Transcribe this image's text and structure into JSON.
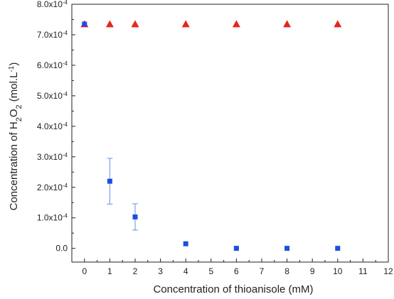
{
  "chart_data": {
    "type": "scatter",
    "xlabel": "Concentration of thioanisole (mM)",
    "ylabel_parts": {
      "prefix": "Concentration of H",
      "sub1": "2",
      "mid": "O",
      "sub2": "2",
      "unit": " (mol.L",
      "unit_sup": "-1",
      "unit_end": ")"
    },
    "xlim": [
      -0.5,
      12
    ],
    "ylim": [
      -4.5e-05,
      0.0008
    ],
    "x_ticks": [
      0,
      1,
      2,
      3,
      4,
      5,
      6,
      7,
      8,
      9,
      10,
      11,
      12
    ],
    "x_tick_labels": [
      "0",
      "1",
      "2",
      "3",
      "4",
      "5",
      "6",
      "7",
      "8",
      "9",
      "10",
      "11",
      "12"
    ],
    "y_ticks": [
      0,
      0.0001,
      0.0002,
      0.0003,
      0.0004,
      0.0005,
      0.0006,
      0.0007,
      0.0008
    ],
    "y_tick_labels": [
      {
        "mant": "0.0",
        "exp": ""
      },
      {
        "mant": "1.0x10",
        "exp": "-4"
      },
      {
        "mant": "2.0x10",
        "exp": "-4"
      },
      {
        "mant": "3.0x10",
        "exp": "-4"
      },
      {
        "mant": "4.0x10",
        "exp": "-4"
      },
      {
        "mant": "5.0x10",
        "exp": "-4"
      },
      {
        "mant": "6.0x10",
        "exp": "-4"
      },
      {
        "mant": "7.0x10",
        "exp": "-4"
      },
      {
        "mant": "8.0x10",
        "exp": "-4"
      }
    ],
    "series": [
      {
        "marker": "triangle",
        "color": "#e8251b",
        "x": [
          0,
          1,
          2,
          4,
          6,
          8,
          10
        ],
        "y": [
          0.000735,
          0.000735,
          0.000735,
          0.000735,
          0.000735,
          0.000735,
          0.000735
        ]
      },
      {
        "marker": "square",
        "color": "#1a4fe0",
        "error_color": "#6a8df0",
        "x": [
          0,
          1,
          2,
          4,
          6,
          8,
          10
        ],
        "y": [
          0.000735,
          0.00022,
          0.000103,
          1.5e-05,
          0,
          0,
          0
        ],
        "err": [
          0,
          7.5e-05,
          4.3e-05,
          0,
          0,
          0,
          0
        ]
      }
    ]
  }
}
